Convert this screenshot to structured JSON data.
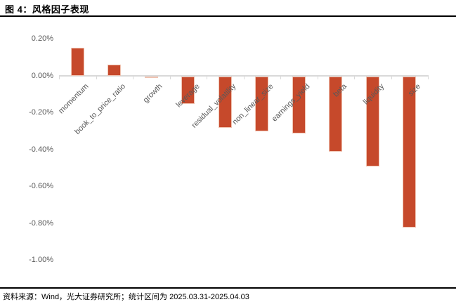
{
  "title": "图 4：风格因子表现",
  "footer": {
    "source": "资料来源：Wind，光大证券研究所；统计区间为 2025.03.31-2025.04.03"
  },
  "chart_data": {
    "type": "bar",
    "categories": [
      "momentum",
      "book_to_price_ratio",
      "growth",
      "leverage",
      "residual_volatility",
      "non_linear_size",
      "earnings_yield",
      "beta",
      "liquidity",
      "size"
    ],
    "values": [
      0.15,
      0.06,
      -0.01,
      -0.15,
      -0.28,
      -0.3,
      -0.31,
      -0.41,
      -0.49,
      -0.82
    ],
    "unit": "%",
    "title": "",
    "xlabel": "",
    "ylabel": "",
    "ylim": [
      -1.0,
      0.2
    ],
    "y_ticks": [
      "0.20%",
      "0.00%",
      "-0.20%",
      "-0.40%",
      "-0.60%",
      "-0.80%",
      "-1.00%"
    ],
    "y_tick_values": [
      0.2,
      0.0,
      -0.2,
      -0.4,
      -0.6,
      -0.8,
      -1.0
    ],
    "grid": false,
    "legend": false,
    "bar_color": "#c6492b",
    "bar_border_color": "#f0c3b1",
    "axis_color": "#d9d9d9",
    "tick_label_color": "#595959"
  }
}
